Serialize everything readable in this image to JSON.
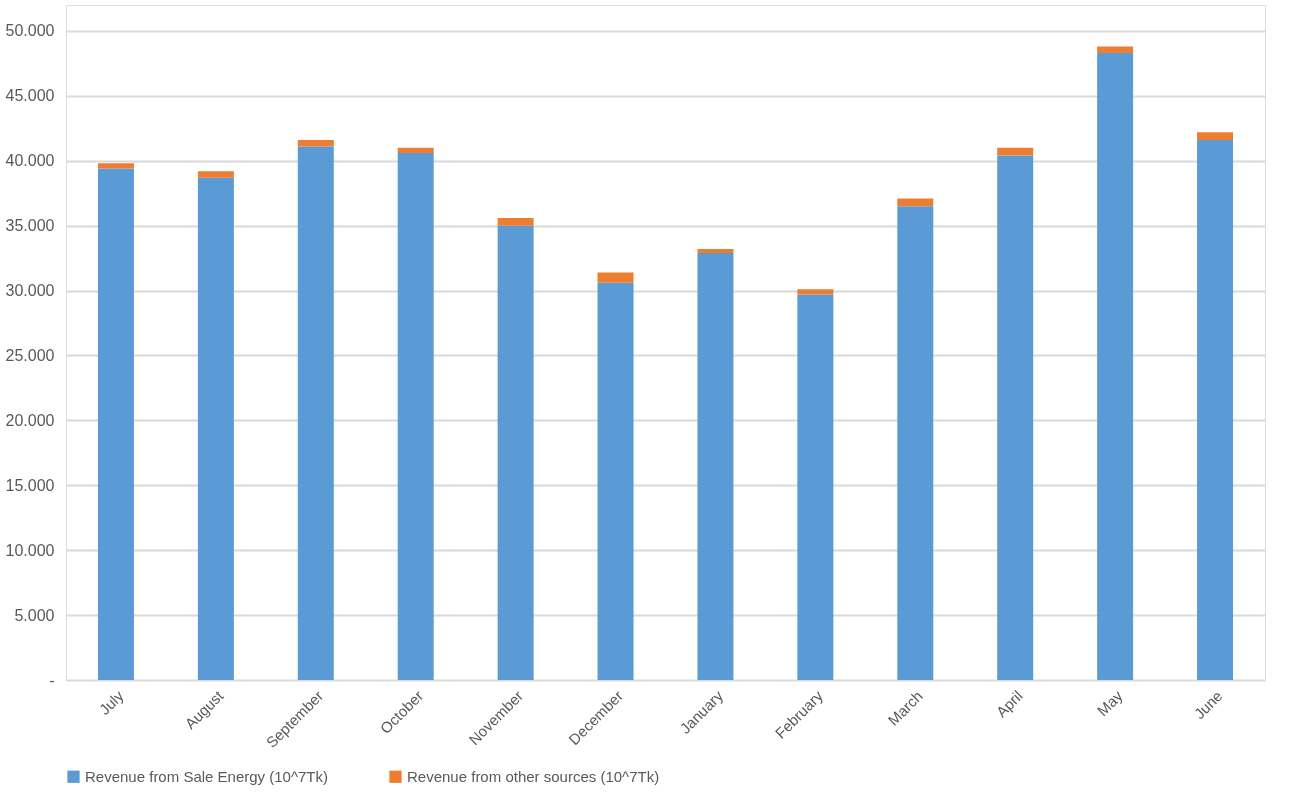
{
  "chart_data": {
    "type": "bar",
    "stacked": true,
    "categories": [
      "July",
      "August",
      "September",
      "October",
      "November",
      "December",
      "January",
      "February",
      "March",
      "April",
      "May",
      "June"
    ],
    "series": [
      {
        "name": "Revenue from Sale Energy (10^7Tk)",
        "color": "#5b9bd5",
        "values": [
          39400,
          38700,
          41100,
          40600,
          35000,
          30600,
          32900,
          29700,
          36500,
          40400,
          48300,
          41600
        ]
      },
      {
        "name": "Revenue from other sources  (10^7Tk)",
        "color": "#ed7d31",
        "values": [
          400,
          500,
          500,
          400,
          600,
          800,
          300,
          400,
          600,
          600,
          500,
          600
        ]
      }
    ],
    "ylim": [
      0,
      52000
    ],
    "yticks": [
      {
        "value": 0,
        "label": "-"
      },
      {
        "value": 5000,
        "label": "5.000"
      },
      {
        "value": 10000,
        "label": "10.000"
      },
      {
        "value": 15000,
        "label": "15.000"
      },
      {
        "value": 20000,
        "label": "20.000"
      },
      {
        "value": 25000,
        "label": "25.000"
      },
      {
        "value": 30000,
        "label": "30.000"
      },
      {
        "value": 35000,
        "label": "35.000"
      },
      {
        "value": 40000,
        "label": "40.000"
      },
      {
        "value": 45000,
        "label": "45.000"
      },
      {
        "value": 50000,
        "label": "50.000"
      }
    ],
    "grid": "y",
    "legend": "bottom"
  }
}
